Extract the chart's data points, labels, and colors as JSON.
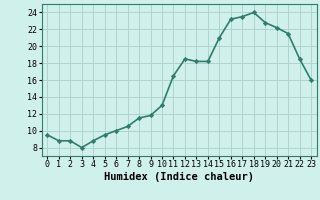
{
  "x": [
    0,
    1,
    2,
    3,
    4,
    5,
    6,
    7,
    8,
    9,
    10,
    11,
    12,
    13,
    14,
    15,
    16,
    17,
    18,
    19,
    20,
    21,
    22,
    23
  ],
  "y": [
    9.5,
    8.8,
    8.8,
    8.0,
    8.8,
    9.5,
    10.0,
    10.5,
    11.5,
    11.8,
    13.0,
    16.5,
    18.5,
    18.2,
    18.2,
    21.0,
    23.2,
    23.5,
    24.0,
    22.8,
    22.2,
    21.5,
    18.5,
    16.0
  ],
  "line_color": "#2e7d6e",
  "marker": "D",
  "marker_size": 2.2,
  "bg_color": "#cff0eb",
  "grid_color": "#aed4ce",
  "xlabel": "Humidex (Indice chaleur)",
  "ylim": [
    7,
    25
  ],
  "xlim": [
    -0.5,
    23.5
  ],
  "yticks": [
    8,
    10,
    12,
    14,
    16,
    18,
    20,
    22,
    24
  ],
  "xticks": [
    0,
    1,
    2,
    3,
    4,
    5,
    6,
    7,
    8,
    9,
    10,
    11,
    12,
    13,
    14,
    15,
    16,
    17,
    18,
    19,
    20,
    21,
    22,
    23
  ],
  "tick_label_size": 6.0,
  "xlabel_fontsize": 7.5,
  "line_width": 1.2
}
